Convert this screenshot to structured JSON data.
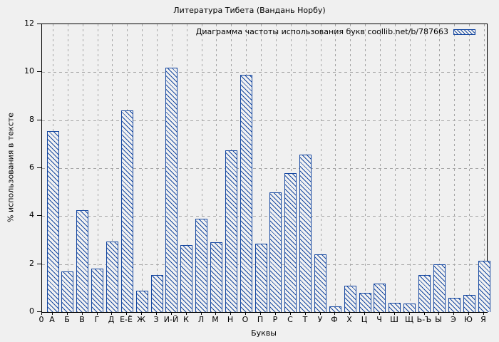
{
  "figure": {
    "title": "Литература Тибета (Вандань Норбу)",
    "legend_label": "Диаграмма частоты использования букв coollib.net/b/787663",
    "xlabel": "Буквы",
    "ylabel": "% использования в тексте",
    "x_origin_label": "0"
  },
  "colors": {
    "bar_blue": "#1547a0",
    "background": "#f0f0f0",
    "grid": "#a6a6a6",
    "axis": "#000000"
  },
  "chart_data": {
    "type": "bar",
    "title": "Литература Тибета (Вандань Норбу)",
    "legend": [
      "Диаграмма частоты использования букв coollib.net/b/787663"
    ],
    "legend_position": "top-right-inside",
    "xlabel": "Буквы",
    "ylabel": "% использования в тексте",
    "categories": [
      "А",
      "Б",
      "В",
      "Г",
      "Д",
      "Е-Ё",
      "Ж",
      "З",
      "И-Й",
      "К",
      "Л",
      "М",
      "Н",
      "О",
      "П",
      "Р",
      "С",
      "Т",
      "У",
      "Ф",
      "Х",
      "Ц",
      "Ч",
      "Ш",
      "Щ",
      "Ь-Ъ",
      "Ы",
      "Э",
      "Ю",
      "Я"
    ],
    "values": [
      7.55,
      1.7,
      4.25,
      1.8,
      2.95,
      8.4,
      0.9,
      1.55,
      10.2,
      2.8,
      3.9,
      2.9,
      6.75,
      9.9,
      2.85,
      5.0,
      5.8,
      6.55,
      2.4,
      0.25,
      1.1,
      0.8,
      1.2,
      0.4,
      0.35,
      1.55,
      2.0,
      0.6,
      0.7,
      2.15
    ],
    "ylim": [
      0,
      12
    ],
    "yticks": [
      0,
      2,
      4,
      6,
      8,
      10,
      12
    ],
    "grid": true,
    "bar_style": "blue diagonal hatch, hollow fill"
  }
}
